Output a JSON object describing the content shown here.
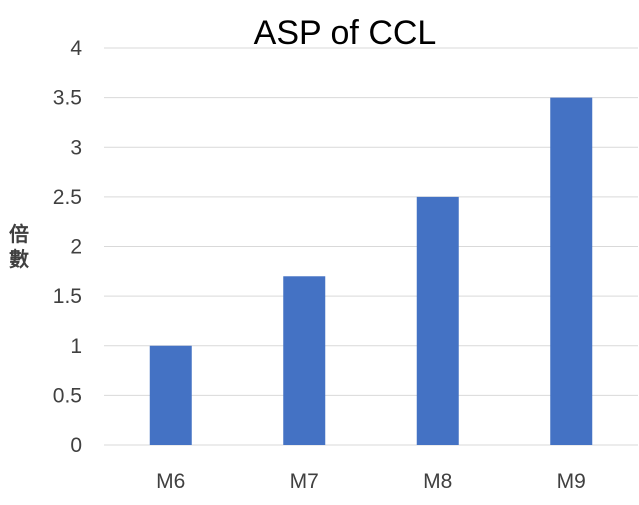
{
  "chart_data": {
    "type": "bar",
    "title": "ASP of CCL",
    "xlabel": "",
    "ylabel": "倍數",
    "categories": [
      "M6",
      "M7",
      "M8",
      "M9"
    ],
    "values": [
      1,
      1.7,
      2.5,
      3.5
    ],
    "ylim": [
      0,
      4
    ],
    "yticks": [
      "0",
      "0.5",
      "1",
      "1.5",
      "2",
      "2.5",
      "3",
      "3.5",
      "4"
    ],
    "grid": true,
    "bar_color": "#4472C4",
    "grid_color": "#d9d9d9"
  }
}
